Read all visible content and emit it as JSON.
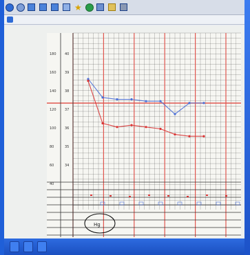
{
  "browser": {
    "toolbar_buttons": [
      {
        "icon": "back-icon"
      },
      {
        "icon": "forward-icon"
      },
      {
        "icon": "stop-icon"
      },
      {
        "icon": "refresh-icon"
      },
      {
        "icon": "home-icon"
      },
      {
        "icon": "search-icon"
      },
      {
        "icon": "favorites-icon"
      },
      {
        "icon": "media-icon"
      },
      {
        "icon": "history-icon"
      },
      {
        "icon": "mail-icon"
      },
      {
        "icon": "print-icon"
      }
    ]
  },
  "chart_data": {
    "type": "line",
    "y_ticks_left": [
      "180",
      "160",
      "140",
      "120",
      "100",
      "80",
      "60",
      "40"
    ],
    "y_ticks_right": [
      "40",
      "39",
      "38",
      "37",
      "36",
      "35",
      "34"
    ],
    "series": [
      {
        "color": "#4b6fd6",
        "values": [
          148,
          128,
          126,
          126,
          124,
          124,
          110,
          122,
          122
        ]
      },
      {
        "color": "#d93333",
        "values": [
          146,
          100,
          96,
          98,
          96,
          94,
          88,
          86,
          86
        ]
      }
    ],
    "circled_note": "Hg"
  },
  "colors": {
    "grid_red": "#e0564f",
    "grid_black": "#333333",
    "pulse_blue": "#4b6fd6",
    "temp_red": "#d93333",
    "taskbar": "#2d6be0"
  }
}
